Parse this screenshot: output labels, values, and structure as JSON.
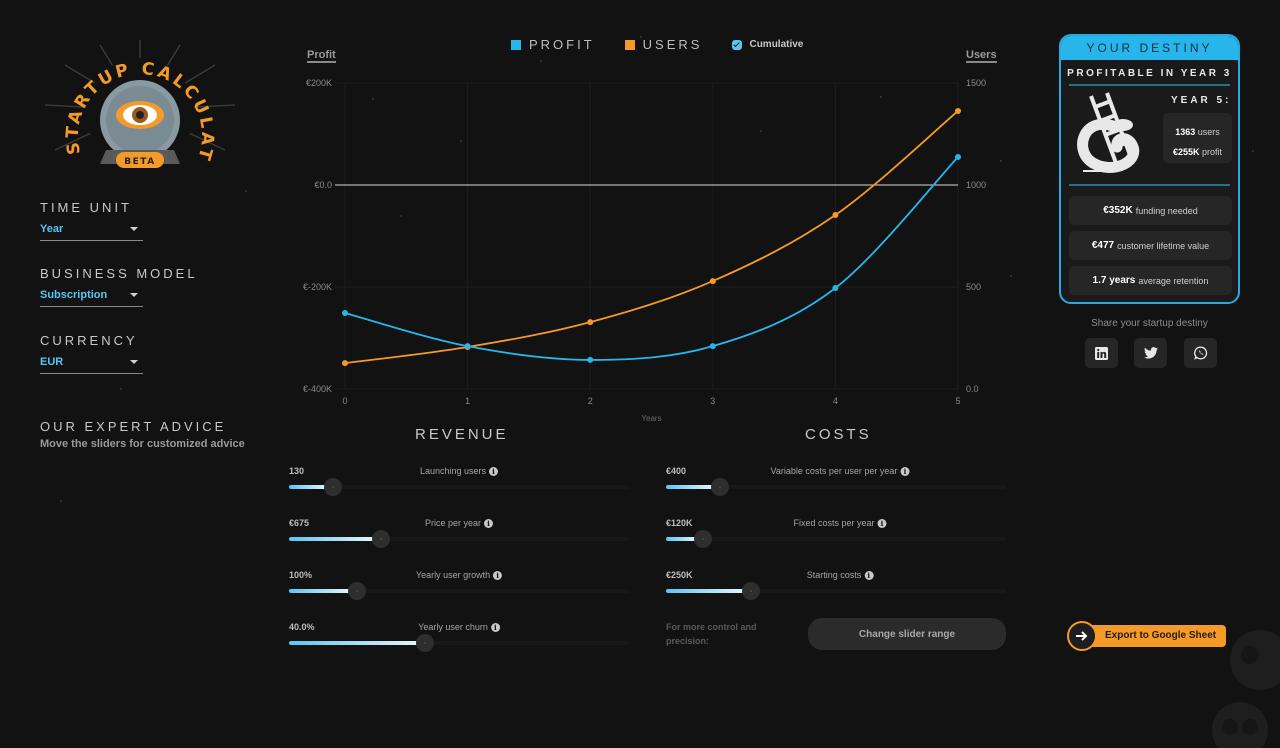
{
  "app": {
    "logo": {
      "title": "STARTUP CALCULATOR",
      "badge": "BETA"
    }
  },
  "sidebar": {
    "time_unit": {
      "title": "TIME UNIT",
      "value": "Year"
    },
    "business_model": {
      "title": "BUSINESS MODEL",
      "value": "Subscription"
    },
    "currency": {
      "title": "CURRENCY",
      "value": "EUR"
    },
    "advice": {
      "title": "OUR EXPERT ADVICE",
      "subtitle": "Move the sliders for customized advice"
    }
  },
  "chart": {
    "legend": {
      "profit": {
        "label": "PROFIT",
        "color": "#27b5ec"
      },
      "users": {
        "label": "USERS",
        "color": "#f39a29"
      },
      "cumulative": {
        "label": "Cumulative",
        "checked": true
      }
    },
    "left_axis_title": "Profit",
    "right_axis_title": "Users",
    "x_axis_title": "Years"
  },
  "chart_data": {
    "type": "line",
    "title": "",
    "xlabel": "Years",
    "ylabel": "Profit",
    "ylabel_right": "Users",
    "x": [
      0,
      1,
      2,
      3,
      4,
      5
    ],
    "x_ticks": [
      "0",
      "1",
      "2",
      "3",
      "4",
      "5"
    ],
    "y_ticks_left": [
      "€200K",
      "€0.0",
      "€-200K",
      "€-400K"
    ],
    "y_ticks_right": [
      "1500",
      "1000",
      "500",
      "0.0"
    ],
    "ylim_left": [
      -400000,
      200000
    ],
    "ylim_right": [
      0,
      1500
    ],
    "grid": true,
    "legend_position": "top",
    "series": [
      {
        "name": "PROFIT",
        "axis": "left",
        "color": "#27b5ec",
        "values": [
          -251000,
          -316000,
          -343000,
          -316000,
          -202000,
          55000
        ]
      },
      {
        "name": "USERS",
        "axis": "right",
        "color": "#f39a29",
        "values": [
          127,
          206,
          328,
          529,
          853,
          1363
        ]
      }
    ]
  },
  "revenue": {
    "title": "REVENUE",
    "sliders": [
      {
        "value": "130",
        "label": "Launching users",
        "percent": 13
      },
      {
        "value": "€675",
        "label": "Price per year",
        "percent": 27
      },
      {
        "value": "100%",
        "label": "Yearly user growth",
        "percent": 20
      },
      {
        "value": "40.0%",
        "label": "Yearly user churn",
        "percent": 40
      }
    ]
  },
  "costs": {
    "title": "COSTS",
    "sliders": [
      {
        "value": "€400",
        "label": "Variable costs per user per year",
        "percent": 16
      },
      {
        "value": "€120K",
        "label": "Fixed costs per year",
        "percent": 11
      },
      {
        "value": "€250K",
        "label": "Starting costs",
        "percent": 25
      }
    ],
    "more_control_text": "For more control and precision:",
    "change_range_label": "Change slider range"
  },
  "destiny": {
    "header": "YOUR DESTINY",
    "subtitle": "PROFITABLE IN YEAR 3",
    "year_label": "YEAR 5:",
    "users_value": "1363",
    "users_unit": "users",
    "profit_value": "€255K",
    "profit_unit": "profit",
    "stats": [
      {
        "value": "€352K",
        "label": "funding needed"
      },
      {
        "value": "€477",
        "label": "customer lifetime value"
      },
      {
        "value": "1.7 years",
        "label": "average retention"
      }
    ]
  },
  "share": {
    "label": "Share your startup destiny",
    "buttons": [
      "linkedin",
      "twitter",
      "whatsapp"
    ]
  },
  "export": {
    "label": "Export to Google Sheet"
  }
}
